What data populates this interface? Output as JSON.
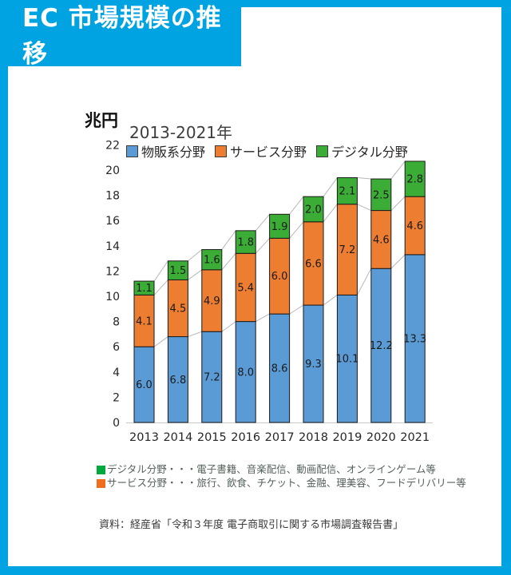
{
  "header": {
    "title": "EC 市場規模の推移"
  },
  "chart_data": {
    "type": "bar",
    "stacked": true,
    "title": "2013-2021年",
    "unit_label": "兆円",
    "categories": [
      "2013",
      "2014",
      "2015",
      "2016",
      "2017",
      "2018",
      "2019",
      "2020",
      "2021"
    ],
    "series": [
      {
        "name": "物販系分野",
        "color": "#5B9BD5",
        "values": [
          6.0,
          6.8,
          7.2,
          8.0,
          8.6,
          9.3,
          10.1,
          12.2,
          13.3
        ]
      },
      {
        "name": "サービス分野",
        "color": "#ED7D31",
        "values": [
          4.1,
          4.5,
          4.9,
          5.4,
          6.0,
          6.6,
          7.2,
          4.6,
          4.6
        ]
      },
      {
        "name": "デジタル分野",
        "color": "#3BAC35",
        "values": [
          1.1,
          1.5,
          1.6,
          1.8,
          1.9,
          2.0,
          2.1,
          2.5,
          2.8
        ]
      }
    ],
    "totals": [
      11.2,
      12.8,
      13.7,
      15.2,
      16.5,
      17.9,
      19.4,
      19.3,
      20.7
    ],
    "y_ticks": [
      0,
      2,
      4,
      6,
      8,
      10,
      12,
      14,
      16,
      18,
      20,
      22
    ],
    "ylim": [
      0,
      22
    ],
    "legend_position": "top",
    "gridlines": false,
    "series_lines": true,
    "value_labels": true
  },
  "footnotes": [
    {
      "swatch_color": "#00A83E",
      "text": "デジタル分野・・・電子書籍、音楽配信、動画配信、オンラインゲーム等"
    },
    {
      "swatch_color": "#F06D1E",
      "text": "サービス分野・・・旅行、飲食、チケット、金融、理美容、フードデリバリー等"
    }
  ],
  "source": "資料：経産省「令和３年度 電子商取引に関する市場調査報告書」",
  "colors": {
    "page_background": "#00A3E2",
    "card_background": "#FFFFFF",
    "bar_border": "#1A1A1A",
    "axis_line": "#C9C9C9",
    "series_line": "#B8B8B8"
  }
}
